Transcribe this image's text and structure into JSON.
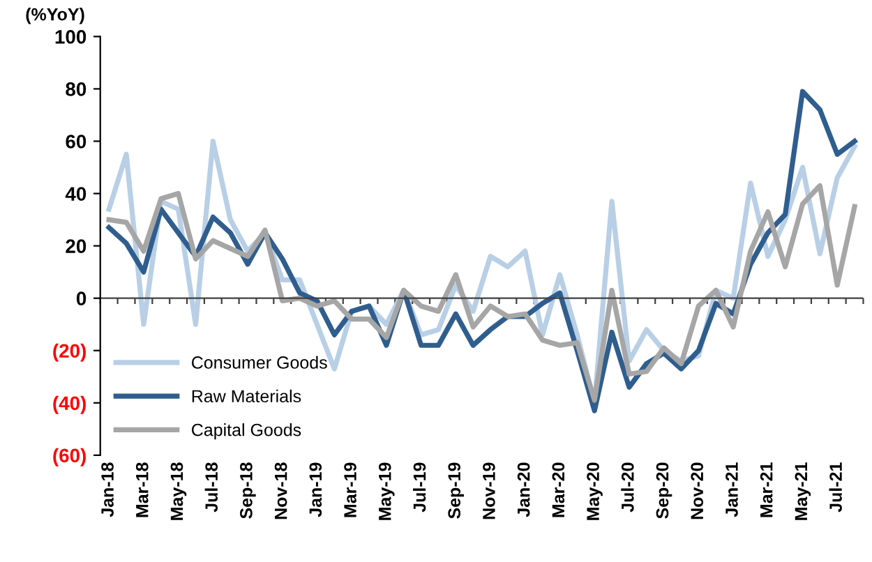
{
  "chart_data": {
    "type": "line",
    "ylabel": "(%YoY)",
    "categories": [
      "Jan-18",
      null,
      "Mar-18",
      null,
      "May-18",
      null,
      "Jul-18",
      null,
      "Sep-18",
      null,
      "Nov-18",
      null,
      "Jan-19",
      null,
      "Mar-19",
      null,
      "May-19",
      null,
      "Jul-19",
      null,
      "Sep-19",
      null,
      "Nov-19",
      null,
      "Jan-20",
      null,
      "Mar-20",
      null,
      "May-20",
      null,
      "Jul-20",
      null,
      "Sep-20",
      null,
      "Nov-20",
      null,
      "Jan-21",
      null,
      "Mar-21",
      null,
      "May-21",
      null,
      "Jul-21",
      null
    ],
    "series": [
      {
        "name": "Consumer Goods",
        "color": "#b8cfe6",
        "values": [
          34,
          55,
          -10,
          37,
          34,
          -10,
          60,
          30,
          18,
          25,
          7,
          7,
          -10,
          -27,
          -5,
          -3,
          -10,
          3,
          -14,
          -12,
          5,
          -5,
          16,
          12,
          18,
          -14,
          9,
          -14,
          -40,
          37,
          -24,
          -12,
          -20,
          -24,
          -22,
          3,
          0,
          44,
          16,
          30,
          50,
          17,
          46,
          58
        ]
      },
      {
        "name": "Raw Materials",
        "color": "#2f5e8e",
        "values": [
          27,
          21,
          10,
          34,
          25,
          16,
          31,
          25,
          13,
          25,
          15,
          2,
          -1,
          -14,
          -5,
          -3,
          -18,
          3,
          -18,
          -18,
          -6,
          -18,
          -12,
          -7,
          -7,
          -2,
          2,
          -20,
          -43,
          -13,
          -34,
          -25,
          -21,
          -27,
          -20,
          -2,
          -6,
          13,
          25,
          32,
          79,
          72,
          55,
          60
        ]
      },
      {
        "name": "Capital Goods",
        "color": "#a6a6a6",
        "values": [
          30,
          29,
          18,
          38,
          40,
          15,
          22,
          19,
          16,
          26,
          -1,
          0,
          -3,
          -1,
          -8,
          -8,
          -15,
          3,
          -3,
          -5,
          9,
          -11,
          -3,
          -7,
          -6,
          -16,
          -18,
          -17,
          -39,
          3,
          -29,
          -28,
          -19,
          -25,
          -3,
          3,
          -11,
          18,
          33,
          12,
          36,
          43,
          5,
          35
        ]
      }
    ],
    "ylim": [
      -60,
      100
    ],
    "yticks": [
      {
        "value": -60,
        "label": "(60)"
      },
      {
        "value": -40,
        "label": "(40)"
      },
      {
        "value": -20,
        "label": "(20)"
      },
      0,
      20,
      40,
      60,
      80,
      100
    ],
    "ref_lines": [
      {
        "axis": "y",
        "value": 0,
        "color": "#404040"
      }
    ],
    "grid": false,
    "legend": "bottom left",
    "marker": "none",
    "line_style": "solid"
  }
}
